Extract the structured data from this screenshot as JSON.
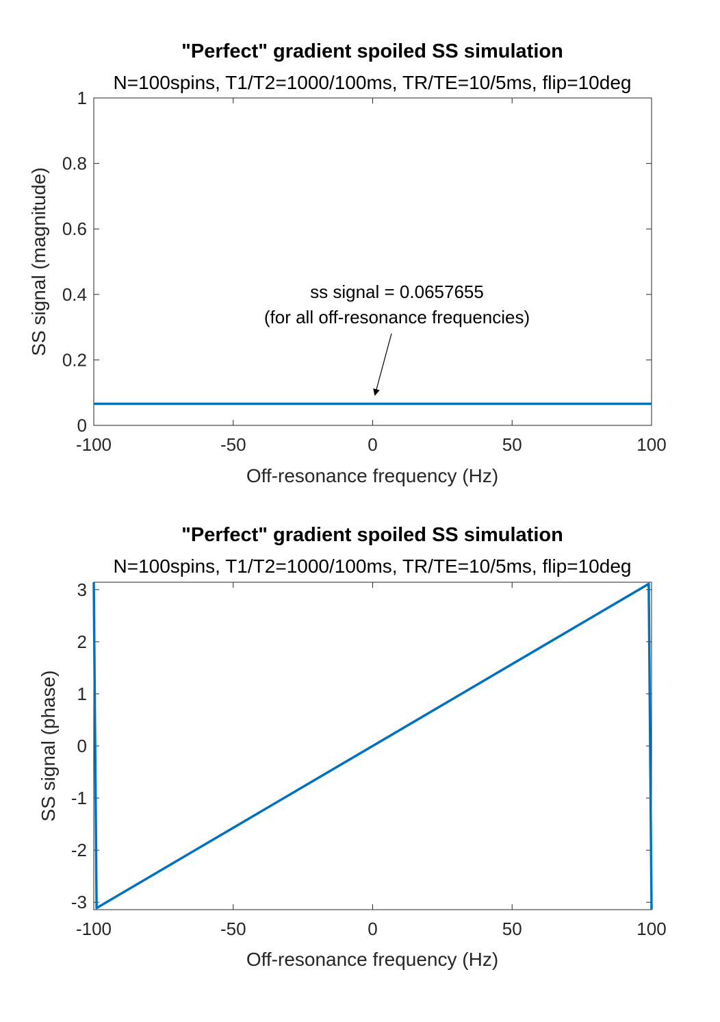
{
  "chart_data": [
    {
      "type": "line",
      "title": "\"Perfect\" gradient spoiled SS simulation",
      "subtitle": "N=100spins, T1/T2=1000/100ms, TR/TE=10/5ms, flip=10deg",
      "xlabel": "Off-resonance frequency (Hz)",
      "ylabel": "SS signal (magnitude)",
      "xlim": [
        -100,
        100
      ],
      "ylim": [
        0,
        1
      ],
      "xticks": [
        -100,
        -50,
        0,
        50,
        100
      ],
      "xtick_labels": [
        "-100",
        "-50",
        "0",
        "50",
        "100"
      ],
      "yticks": [
        0,
        0.2,
        0.4,
        0.6,
        0.8,
        1
      ],
      "ytick_labels": [
        "0",
        "0.2",
        "0.4",
        "0.6",
        "0.8",
        "1"
      ],
      "grid": false,
      "series": [
        {
          "color": "#0072BD",
          "x": [
            -100,
            100
          ],
          "y": [
            0.0657655,
            0.0657655
          ]
        }
      ],
      "annotation": {
        "lines": [
          "ss signal = 0.0657655",
          "(for all off-resonance frequencies)"
        ],
        "arrow_to": [
          0.5,
          0.09
        ]
      }
    },
    {
      "type": "line",
      "title": "\"Perfect\" gradient spoiled SS simulation",
      "subtitle": "N=100spins, T1/T2=1000/100ms, TR/TE=10/5ms, flip=10deg",
      "xlabel": "Off-resonance frequency (Hz)",
      "ylabel": "SS signal (phase)",
      "xlim": [
        -100,
        100
      ],
      "ylim": [
        -3.1416,
        3.1416
      ],
      "xticks": [
        -100,
        -50,
        0,
        50,
        100
      ],
      "xtick_labels": [
        "-100",
        "-50",
        "0",
        "50",
        "100"
      ],
      "yticks": [
        -3,
        -2,
        -1,
        0,
        1,
        2,
        3
      ],
      "ytick_labels": [
        "-3",
        "-2",
        "-1",
        "0",
        "1",
        "2",
        "3"
      ],
      "grid": false,
      "series": [
        {
          "color": "#0072BD",
          "x": [
            -100,
            -98.99,
            98.99,
            100
          ],
          "y": [
            3.14,
            -3.11,
            3.11,
            -3.14
          ]
        }
      ]
    }
  ]
}
